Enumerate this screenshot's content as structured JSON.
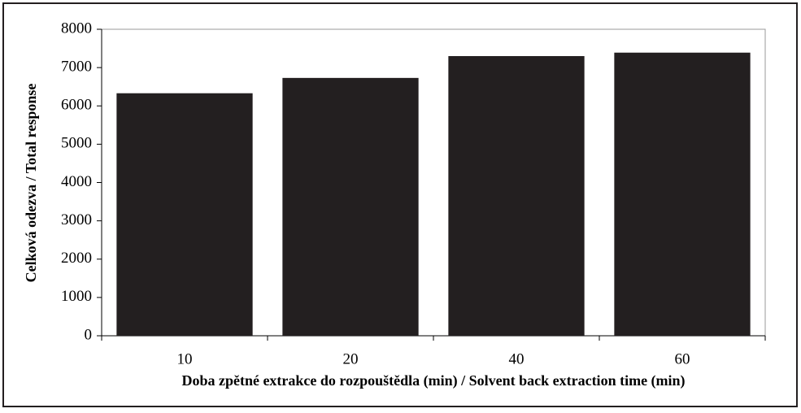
{
  "chart_data": {
    "type": "bar",
    "x_label": "Doba zpětné extrakce do rozpouštědla (min) / Solvent back extraction time (min)",
    "y_label": "Celková odezva / Total response",
    "categories": [
      "10",
      "20",
      "40",
      "60"
    ],
    "values": [
      6330,
      6730,
      7300,
      7390
    ],
    "color": "#231f20",
    "ylim": [
      0,
      8000
    ],
    "yticks": [
      0,
      1000,
      2000,
      3000,
      4000,
      5000,
      6000,
      7000,
      8000
    ]
  }
}
